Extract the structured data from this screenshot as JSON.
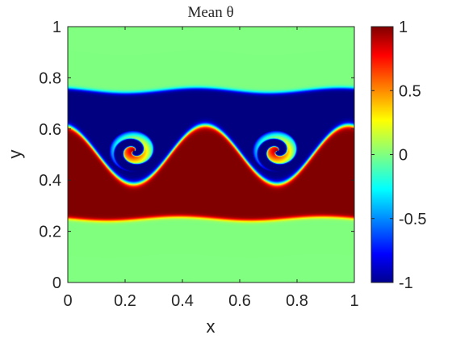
{
  "chart_data": {
    "type": "heatmap",
    "title": "Mean θ",
    "xlabel": "x",
    "ylabel": "y",
    "xlim": [
      0,
      1
    ],
    "ylim": [
      0,
      1
    ],
    "x_ticks": [
      0,
      0.2,
      0.4,
      0.6,
      0.8,
      1
    ],
    "x_tick_labels": [
      "0",
      "0.2",
      "0.4",
      "0.6",
      "0.8",
      "1"
    ],
    "y_ticks": [
      0,
      0.2,
      0.4,
      0.6,
      0.8,
      1
    ],
    "y_tick_labels": [
      "0",
      "0.2",
      "0.4",
      "0.6",
      "0.8",
      "1"
    ],
    "colormap": "jet",
    "clim": [
      -1,
      1
    ],
    "colorbar_ticks": [
      -1,
      -0.5,
      0,
      0.5,
      1
    ],
    "colorbar_tick_labels": [
      "-1",
      "-0.5",
      "0",
      "0.5",
      "1"
    ],
    "colorbar_location": "right",
    "grid": false,
    "field_description": {
      "background_value": 0,
      "upper_layer_value": -1,
      "upper_layer_top_y": 0.75,
      "lower_layer_value": 1,
      "lower_layer_bottom_y": 0.25,
      "interface_mean_y": 0.5,
      "vortex_centers": [
        [
          0.23,
          0.5
        ],
        [
          0.73,
          0.5
        ]
      ]
    }
  }
}
